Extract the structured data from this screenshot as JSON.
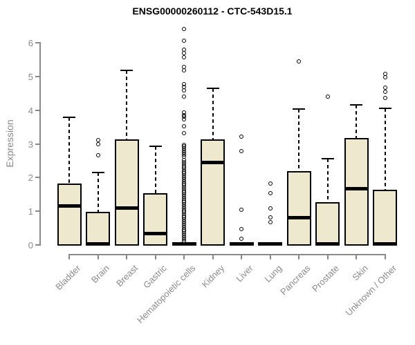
{
  "title": "ENSG00000260112 - CTC-543D15.1",
  "chart_data": {
    "type": "boxplot",
    "title": "ENSG00000260112 - CTC-543D15.1",
    "xlabel": "",
    "ylabel": "Expression",
    "ylim": [
      0,
      6.5
    ],
    "yticks": [
      0,
      1,
      2,
      3,
      4,
      5,
      6
    ],
    "grid": false,
    "legend": "none",
    "box_fill_color": "#EDE8CE",
    "box_border_color": "#000000",
    "axis_color": "#888888",
    "label_color": "#8a8a8a",
    "categories": [
      "Bladder",
      "Brain",
      "Breast",
      "Gastric",
      "Hematopoietic cells",
      "Kidney",
      "Liver",
      "Lung",
      "Pancreas",
      "Prostate",
      "Skin",
      "Unknown / Other"
    ],
    "series": [
      {
        "name": "Bladder",
        "whisker_low": 0,
        "q1": 0,
        "median": 1.15,
        "q3": 1.8,
        "whisker_high": 3.78,
        "outliers": []
      },
      {
        "name": "Brain",
        "whisker_low": 0,
        "q1": 0,
        "median": 0.04,
        "q3": 0.96,
        "whisker_high": 2.15,
        "outliers": [
          3.12,
          3.0,
          2.66
        ]
      },
      {
        "name": "Breast",
        "whisker_low": 0,
        "q1": 0,
        "median": 1.09,
        "q3": 3.12,
        "whisker_high": 5.18,
        "outliers": []
      },
      {
        "name": "Gastric",
        "whisker_low": 0,
        "q1": 0,
        "median": 0.33,
        "q3": 1.52,
        "whisker_high": 2.92,
        "outliers": []
      },
      {
        "name": "Hematopoietic cells",
        "whisker_low": 0,
        "q1": 0,
        "median": 0.04,
        "q3": 0.07,
        "whisker_high": 0.07,
        "outliers": [
          6.4,
          6.06,
          5.8,
          5.7,
          5.56,
          5.28,
          5.18,
          4.78,
          4.68,
          4.58,
          4.4,
          3.94,
          3.86,
          3.8,
          3.73,
          3.52,
          3.31,
          2.97,
          2.92,
          2.86,
          2.8,
          2.75,
          2.69,
          2.63,
          2.51,
          2.46,
          2.4,
          2.34,
          2.29,
          2.23,
          2.17,
          2.12,
          2.06,
          2.0,
          1.95,
          1.89,
          1.83,
          1.78,
          1.72,
          1.66,
          1.6,
          1.55,
          1.49,
          1.43,
          1.38,
          1.32,
          1.26,
          1.21,
          1.15,
          1.09,
          1.03,
          0.98,
          0.92,
          0.86,
          0.81,
          0.75,
          0.69,
          0.63,
          0.58,
          0.52,
          0.46,
          0.41,
          0.35,
          0.29,
          0.23,
          0.17,
          0.1
        ]
      },
      {
        "name": "Kidney",
        "whisker_low": 0,
        "q1": 0,
        "median": 2.44,
        "q3": 3.12,
        "whisker_high": 4.64,
        "outliers": []
      },
      {
        "name": "Liver",
        "whisker_low": 0,
        "q1": 0,
        "median": 0.04,
        "q3": 0.07,
        "whisker_high": 0.07,
        "outliers": [
          3.21,
          2.78,
          1.04,
          0.48,
          0.19
        ]
      },
      {
        "name": "Lung",
        "whisker_low": 0,
        "q1": 0,
        "median": 0.04,
        "q3": 0.07,
        "whisker_high": 0.07,
        "outliers": [
          1.83,
          1.54,
          1.09,
          0.82,
          0.68
        ]
      },
      {
        "name": "Pancreas",
        "whisker_low": 0,
        "q1": 0,
        "median": 0.8,
        "q3": 2.17,
        "whisker_high": 4.03,
        "outliers": [
          5.45
        ]
      },
      {
        "name": "Prostate",
        "whisker_low": 0,
        "q1": 0,
        "median": 0.04,
        "q3": 1.25,
        "whisker_high": 2.56,
        "outliers": [
          4.4
        ]
      },
      {
        "name": "Skin",
        "whisker_low": 0,
        "q1": 0,
        "median": 1.66,
        "q3": 3.15,
        "whisker_high": 4.16,
        "outliers": []
      },
      {
        "name": "Unknown / Other",
        "whisker_low": 0,
        "q1": 0,
        "median": 0.04,
        "q3": 1.62,
        "whisker_high": 4.05,
        "outliers": [
          5.08,
          4.97,
          4.66,
          4.55,
          4.37
        ]
      }
    ]
  }
}
